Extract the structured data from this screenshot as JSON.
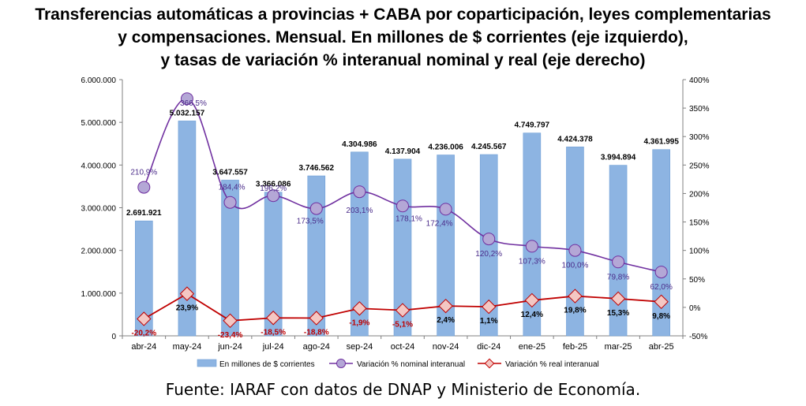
{
  "title_lines": [
    "Transferencias automáticas a provincias + CABA por coparticipación, leyes complementarias",
    "y compensaciones. Mensual. En millones de $ corrientes (eje izquierdo),",
    "y tasas de variación % interanual nominal y real (eje derecho)"
  ],
  "source": "Fuente: IARAF con datos de DNAP y Ministerio de Economía.",
  "chart_data": {
    "type": "bar",
    "categories": [
      "abr-24",
      "may-24",
      "jun-24",
      "jul-24",
      "ago-24",
      "sep-24",
      "oct-24",
      "nov-24",
      "dic-24",
      "ene-25",
      "feb-25",
      "mar-25",
      "abr-25"
    ],
    "series": [
      {
        "name": "En millones de $ corrientes",
        "type": "bar",
        "axis": "left",
        "values": [
          2691921,
          5032157,
          3647557,
          3366086,
          3746562,
          4304986,
          4137904,
          4236006,
          4245567,
          4749797,
          4424378,
          3994894,
          4361995
        ],
        "labels": [
          "2.691.921",
          "5.032.157",
          "3.647.557",
          "3.366.086",
          "3.746.562",
          "4.304.986",
          "4.137.904",
          "4.236.006",
          "4.245.567",
          "4.749.797",
          "4.424.378",
          "3.994.894",
          "4.361.995"
        ]
      },
      {
        "name": "Variación % nominal interanual",
        "type": "line",
        "axis": "right",
        "values": [
          210.9,
          366.5,
          184.4,
          196.2,
          173.5,
          203.1,
          178.1,
          172.4,
          120.2,
          107.3,
          100.0,
          79.8,
          62.0
        ],
        "labels": [
          "210,9",
          "366,5",
          "184,4",
          "196,2",
          "173,5",
          "203,1",
          "178,1",
          "172,4",
          "120,2",
          "107,3",
          "100,0",
          "79,8",
          "62,0"
        ]
      },
      {
        "name": "Variación % real interanual",
        "type": "line",
        "axis": "right",
        "values": [
          -20.2,
          23.9,
          -23.4,
          -18.5,
          -18.8,
          -1.9,
          -5.1,
          2.4,
          1.1,
          12.4,
          19.8,
          15.3,
          9.8
        ],
        "labels": [
          "-20,2",
          "23,9",
          "-23,4",
          "-18,5",
          "-18,8",
          "-1,9",
          "-5,1",
          "2,4",
          "1,1",
          "12,4",
          "19,8",
          "15,3",
          "9,8"
        ]
      }
    ],
    "y_left": {
      "ylim": [
        0,
        6000000
      ],
      "ticks": [
        0,
        1000000,
        2000000,
        3000000,
        4000000,
        5000000,
        6000000
      ],
      "tick_labels": [
        "0",
        "1.000.000",
        "2.000.000",
        "3.000.000",
        "4.000.000",
        "5.000.000",
        "6.000.000"
      ]
    },
    "y_right": {
      "ylim": [
        -50,
        400
      ],
      "ticks": [
        -50,
        0,
        50,
        100,
        150,
        200,
        250,
        300,
        350,
        400
      ],
      "tick_labels": [
        "-50%",
        "0%",
        "50%",
        "100%",
        "150%",
        "200%",
        "250%",
        "300%",
        "350%",
        "400%"
      ]
    },
    "grid": false,
    "legend_position": "bottom",
    "colors": {
      "bar_fill": "#8DB4E2",
      "bar_stroke": "#6F9FD6",
      "nominal_line": "#7030A0",
      "nominal_marker_fill": "#B4A7D6",
      "nominal_label": "#4B2C8A",
      "real_line": "#C00000",
      "real_marker_fill": "#F4C7C3",
      "real_label_negative": "#C00000",
      "real_label_positive": "#000000"
    }
  }
}
